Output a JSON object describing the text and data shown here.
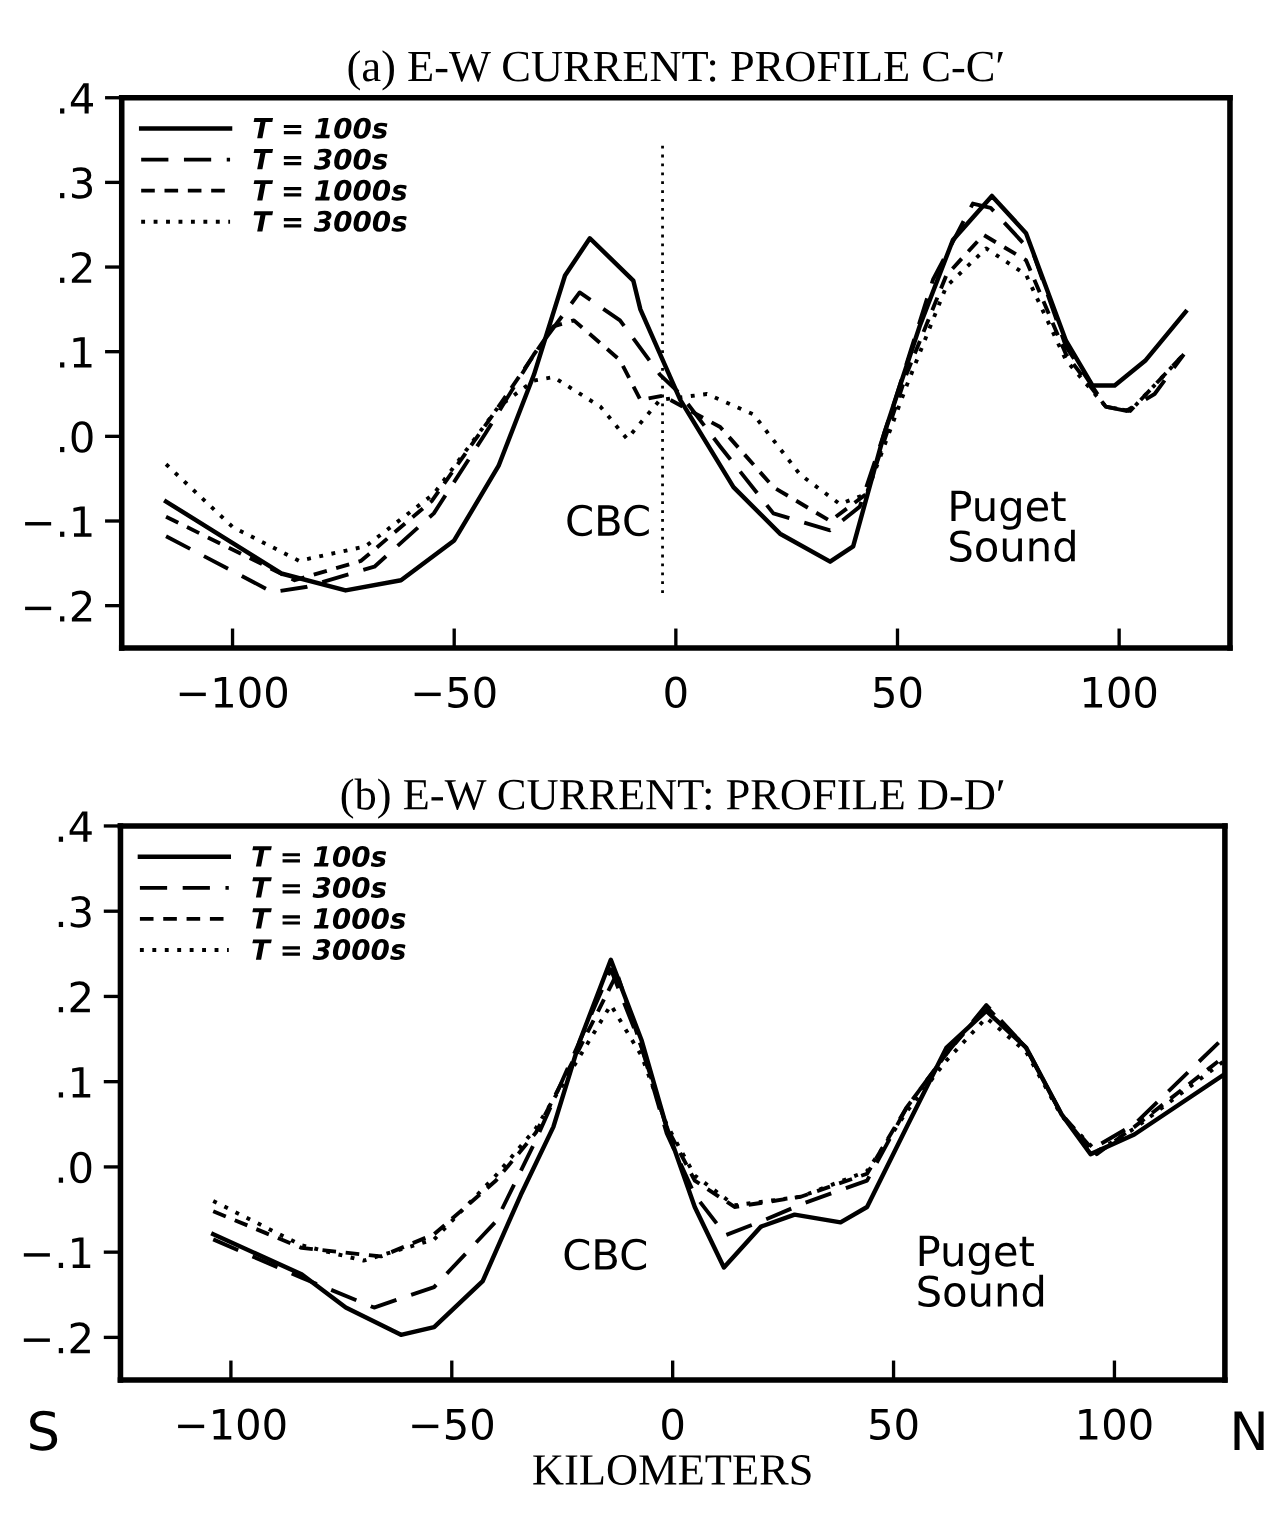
{
  "chart_data": [
    {
      "type": "line",
      "title": "(a) E-W CURRENT: PROFILE C-C′",
      "xlim": [
        -125,
        125
      ],
      "ylim": [
        -0.25,
        0.4
      ],
      "xticks": [
        -100,
        -50,
        0,
        50,
        100
      ],
      "yticks": [
        {
          "value": -0.2,
          "label": "−.2"
        },
        {
          "value": -0.1,
          "label": "−.1"
        },
        {
          "value": 0,
          "label": ".0"
        },
        {
          "value": 0.1,
          "label": ".1"
        },
        {
          "value": 0.2,
          "label": ".2"
        },
        {
          "value": 0.3,
          "label": ".3"
        },
        {
          "value": 0.4,
          "label": ".4"
        }
      ],
      "grid": false,
      "legend": "top left",
      "marker": "none",
      "annotations": [
        "CBC",
        "Puget\nSound"
      ],
      "ref_lines": [
        {
          "axis": "x",
          "value": -3,
          "line_style": "dotted",
          "color": "#000000"
        }
      ],
      "series": [
        {
          "name": "T = 100s",
          "color": "#000000",
          "line_style": "solid",
          "x": [
            -115,
            -89,
            -74.5,
            -62,
            -50,
            -40,
            -32,
            -25,
            -19.4,
            -9.6,
            -8,
            1,
            13,
            23.5,
            34.8,
            40,
            47,
            55,
            62.5,
            71.3,
            79,
            88,
            94,
            99,
            106,
            115
          ],
          "values": [
            -0.077,
            -0.162,
            -0.182,
            -0.17,
            -0.123,
            -0.035,
            0.073,
            0.19,
            0.234,
            0.184,
            0.15,
            0.043,
            -0.06,
            -0.115,
            -0.148,
            -0.13,
            0.003,
            0.13,
            0.232,
            0.284,
            0.24,
            0.113,
            0.06,
            0.06,
            0.09,
            0.147
          ]
        },
        {
          "name": "T = 300s",
          "color": "#000000",
          "line_style": "dashed",
          "x": [
            -115,
            -91,
            -83.5,
            -68,
            -54.6,
            -43,
            -32,
            -21.7,
            -12.6,
            -3.6,
            1,
            10,
            22,
            34.8,
            41.5,
            49,
            58,
            67,
            71,
            80.7,
            88,
            97,
            101.6,
            108,
            114.6
          ],
          "values": [
            -0.118,
            -0.184,
            -0.178,
            -0.154,
            -0.091,
            0.003,
            0.097,
            0.17,
            0.137,
            0.073,
            0.05,
            -0.012,
            -0.091,
            -0.111,
            -0.083,
            0.035,
            0.185,
            0.275,
            0.27,
            0.215,
            0.106,
            0.035,
            0.03,
            0.05,
            0.097
          ]
        },
        {
          "name": "T = 1000s",
          "color": "#000000",
          "line_style": "dashed",
          "x": [
            -115,
            -86,
            -71,
            -55,
            -40,
            -27.6,
            -23,
            -12.6,
            -8,
            -3,
            10,
            22,
            34.8,
            43,
            52,
            61,
            69.4,
            79,
            88,
            97,
            102.5,
            114.6
          ],
          "values": [
            -0.095,
            -0.17,
            -0.147,
            -0.076,
            0.035,
            0.13,
            0.137,
            0.09,
            0.043,
            0.048,
            0.011,
            -0.06,
            -0.1,
            -0.068,
            0.073,
            0.19,
            0.238,
            0.208,
            0.097,
            0.035,
            0.03,
            0.097
          ]
        },
        {
          "name": "T = 3000s",
          "color": "#000000",
          "line_style": "dotted",
          "x": [
            -115,
            -100,
            -85,
            -70,
            -54.6,
            -40,
            -32,
            -27.6,
            -17,
            -11,
            -3.6,
            7,
            17.5,
            28,
            37,
            43,
            52,
            61,
            70,
            79,
            88,
            97,
            102.5,
            114.6
          ],
          "values": [
            -0.033,
            -0.107,
            -0.147,
            -0.13,
            -0.068,
            0.035,
            0.066,
            0.07,
            0.035,
            -0.003,
            0.043,
            0.05,
            0.026,
            -0.045,
            -0.08,
            -0.068,
            0.059,
            0.177,
            0.222,
            0.191,
            0.09,
            0.035,
            0.03,
            0.097
          ]
        }
      ]
    },
    {
      "type": "line",
      "title": "(b) E-W CURRENT: PROFILE D-D′",
      "xlabel": "KILOMETERS",
      "xlim": [
        -125,
        125
      ],
      "ylim": [
        -0.25,
        0.4
      ],
      "xticks": [
        -100,
        -50,
        0,
        50,
        100
      ],
      "yticks": [
        {
          "value": -0.2,
          "label": "−.2"
        },
        {
          "value": -0.1,
          "label": "−.1"
        },
        {
          "value": 0,
          "label": ".0"
        },
        {
          "value": 0.1,
          "label": ".1"
        },
        {
          "value": 0.2,
          "label": ".2"
        },
        {
          "value": 0.3,
          "label": ".3"
        },
        {
          "value": 0.4,
          "label": ".4"
        }
      ],
      "grid": false,
      "legend": "top left",
      "marker": "none",
      "annotations": [
        "CBC",
        "Puget\nSound",
        "S",
        "N"
      ],
      "series": [
        {
          "name": "T = 100s",
          "color": "#000000",
          "line_style": "solid",
          "x": [
            -104,
            -84,
            -74,
            -61.5,
            -54,
            -43,
            -34.4,
            -27,
            -21,
            -14,
            -7,
            -1.4,
            5,
            11.6,
            20,
            27.6,
            38,
            44,
            53,
            62,
            71,
            80,
            88,
            94.6,
            104.5,
            125
          ],
          "values": [
            -0.079,
            -0.126,
            -0.165,
            -0.197,
            -0.188,
            -0.134,
            -0.033,
            0.047,
            0.148,
            0.243,
            0.148,
            0.047,
            -0.047,
            -0.118,
            -0.07,
            -0.056,
            -0.065,
            -0.047,
            0.047,
            0.14,
            0.183,
            0.14,
            0.062,
            0.015,
            0.038,
            0.109
          ]
        },
        {
          "name": "T = 300s",
          "color": "#000000",
          "line_style": "dashed",
          "x": [
            -104,
            -84,
            -67.6,
            -54,
            -40,
            -31,
            -21,
            -14,
            -7,
            -1.4,
            5,
            12,
            20,
            30,
            44,
            53,
            62,
            71,
            80,
            88,
            94.6,
            104.5,
            125
          ],
          "values": [
            -0.085,
            -0.13,
            -0.165,
            -0.141,
            -0.064,
            0.031,
            0.148,
            0.232,
            0.14,
            0.04,
            -0.033,
            -0.08,
            -0.064,
            -0.042,
            -0.016,
            0.07,
            0.133,
            0.19,
            0.14,
            0.062,
            0.02,
            0.05,
            0.153
          ]
        },
        {
          "name": "T = 1000s",
          "color": "#000000",
          "line_style": "dashed",
          "x": [
            -104,
            -84,
            -66,
            -54,
            -40,
            -31,
            -21,
            -12.6,
            -7,
            -1.4,
            5,
            14,
            29,
            44,
            53,
            62,
            71,
            80,
            88,
            96,
            104.5,
            125
          ],
          "values": [
            -0.052,
            -0.095,
            -0.105,
            -0.079,
            -0.016,
            0.04,
            0.14,
            0.227,
            0.14,
            0.047,
            -0.016,
            -0.047,
            -0.035,
            -0.008,
            0.07,
            0.133,
            0.188,
            0.14,
            0.062,
            0.015,
            0.047,
            0.13
          ]
        },
        {
          "name": "T = 3000s",
          "color": "#000000",
          "line_style": "dotted",
          "x": [
            -104,
            -84,
            -70,
            -54,
            -40,
            -31,
            -21,
            -14,
            -7,
            -1.4,
            5,
            14,
            29,
            44,
            53,
            62,
            71,
            80,
            88,
            96,
            104.5,
            125
          ],
          "values": [
            -0.04,
            -0.092,
            -0.11,
            -0.085,
            -0.01,
            0.045,
            0.13,
            0.19,
            0.13,
            0.05,
            -0.01,
            -0.045,
            -0.035,
            -0.005,
            0.065,
            0.125,
            0.175,
            0.135,
            0.06,
            0.018,
            0.045,
            0.125
          ]
        }
      ]
    }
  ]
}
